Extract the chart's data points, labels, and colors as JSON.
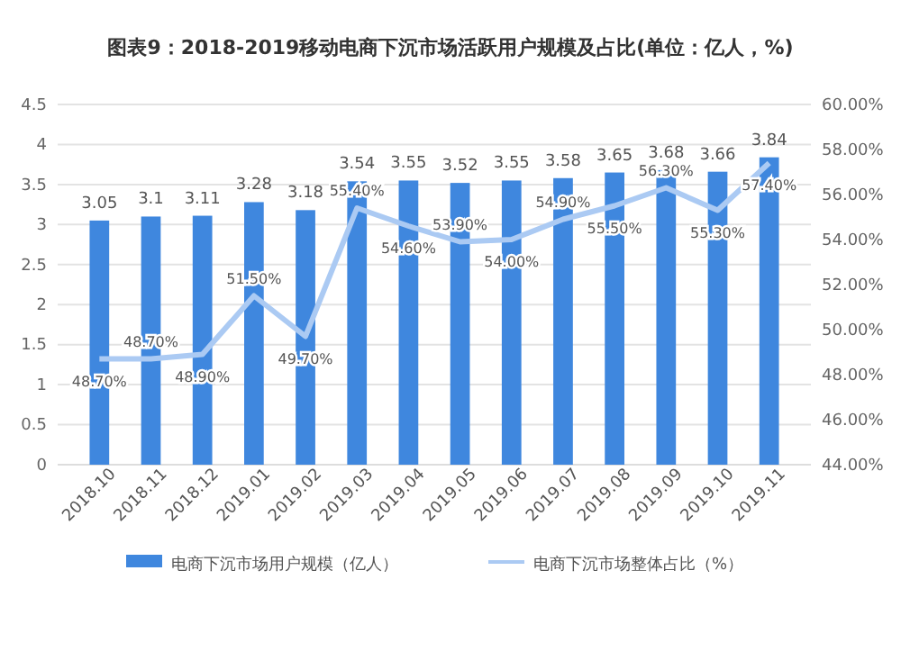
{
  "chart_data": {
    "type": "bar",
    "title": "图表9：2018-2019移动电商下沉市场活跃用户规模及占比(单位：亿人，%)",
    "categories": [
      "2018.10",
      "2018.11",
      "2018.12",
      "2019.01",
      "2019.02",
      "2019.03",
      "2019.04",
      "2019.05",
      "2019.06",
      "2019.07",
      "2019.08",
      "2019.09",
      "2019.10",
      "2019.11"
    ],
    "series": [
      {
        "name": "电商下沉市场用户规模（亿人）",
        "color": "#3f87de",
        "values": [
          3.05,
          3.1,
          3.11,
          3.28,
          3.18,
          3.54,
          3.55,
          3.52,
          3.55,
          3.58,
          3.65,
          3.68,
          3.66,
          3.84
        ]
      },
      {
        "name": "电商下沉市场整体占比（%）",
        "type": "line",
        "axis": "y2",
        "color": "#abcaf3",
        "values": [
          48.7,
          48.7,
          48.9,
          51.5,
          49.7,
          55.4,
          54.6,
          53.9,
          54.0,
          54.9,
          55.5,
          56.3,
          55.3,
          57.4
        ],
        "value_labels": [
          "48.70%",
          "48.70%",
          "48.90%",
          "51.50%",
          "49.70%",
          "55.40%",
          "54.60%",
          "53.90%",
          "54.00%",
          "54.90%",
          "55.50%",
          "56.30%",
          "55.30%",
          "57.40%"
        ]
      }
    ],
    "data_labels": true,
    "ylim": [
      0,
      4.5
    ],
    "yticks": [
      0,
      0.5,
      1,
      1.5,
      2,
      2.5,
      3,
      3.5,
      4,
      4.5
    ],
    "y2lim": [
      44,
      60
    ],
    "y2ticks": [
      {
        "value": 44,
        "label": "44.00%"
      },
      {
        "value": 46,
        "label": "46.00%"
      },
      {
        "value": 48,
        "label": "48.00%"
      },
      {
        "value": 50,
        "label": "50.00%"
      },
      {
        "value": 52,
        "label": "52.00%"
      },
      {
        "value": 54,
        "label": "54.00%"
      },
      {
        "value": 56,
        "label": "56.00%"
      },
      {
        "value": 58,
        "label": "58.00%"
      },
      {
        "value": 60,
        "label": "60.00%"
      }
    ],
    "grid": "y",
    "legend": "bottom",
    "marker": "none",
    "line_style": "solid"
  }
}
